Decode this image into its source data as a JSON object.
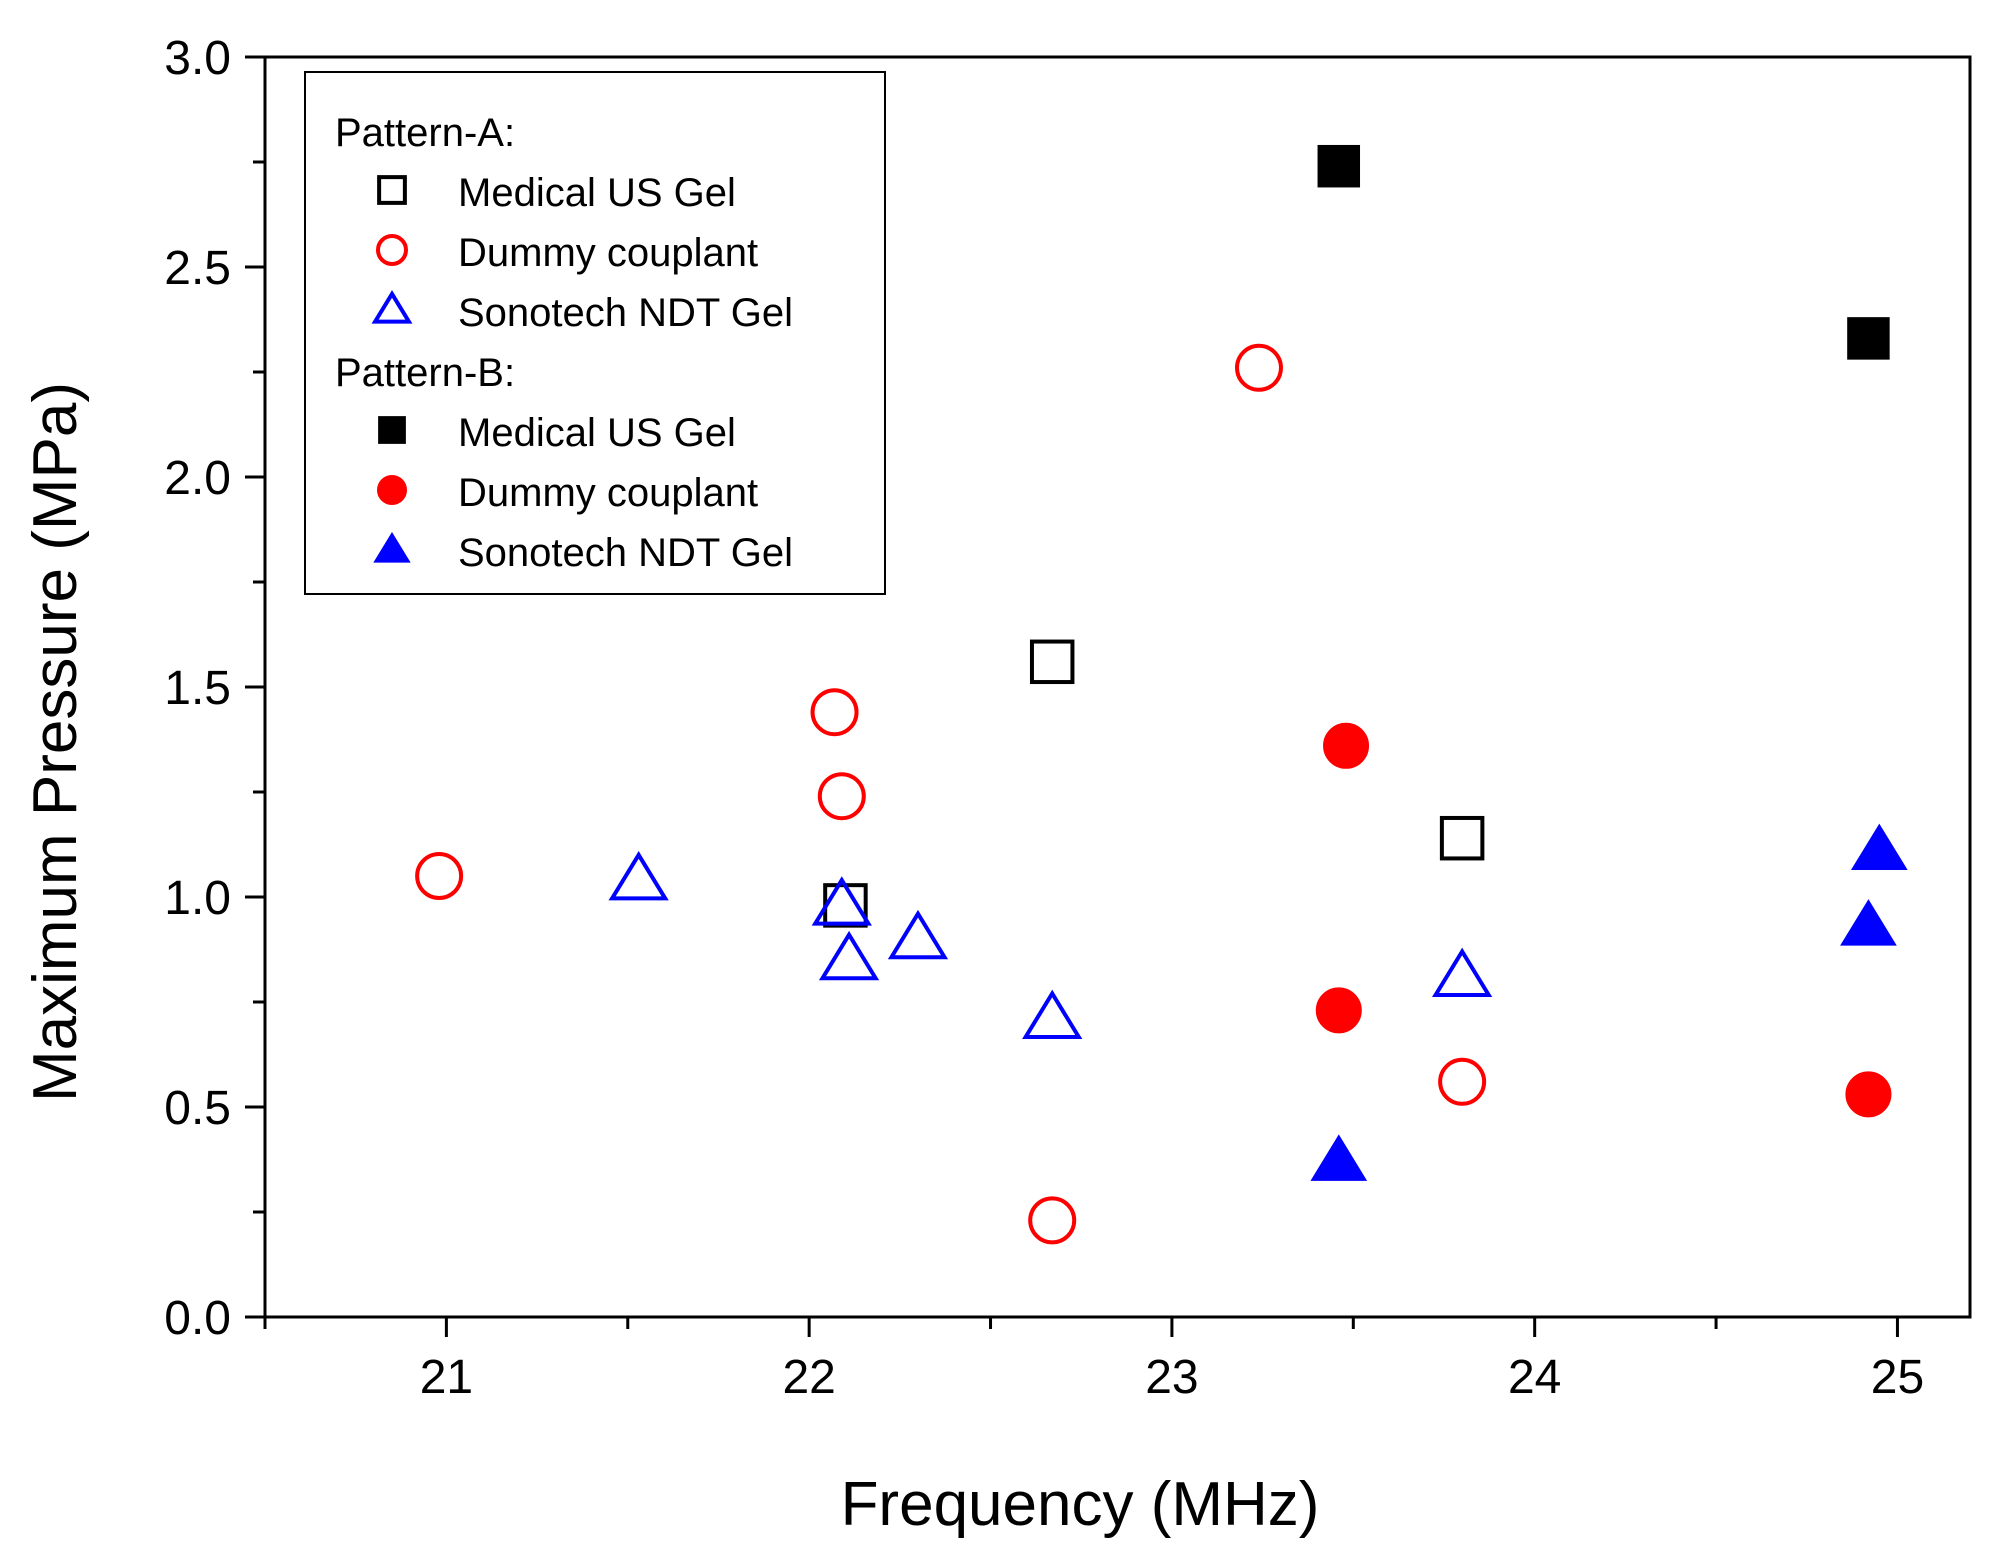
{
  "chart_data": {
    "type": "scatter",
    "title": "",
    "xlabel": "Frequency (MHz)",
    "ylabel": "Maximum Pressure (MPa)",
    "xlim": [
      20.5,
      25.2
    ],
    "ylim": [
      0.0,
      3.0
    ],
    "x_ticks": [
      21,
      22,
      23,
      24,
      25
    ],
    "x_tick_labels": [
      "21",
      "22",
      "23",
      "24",
      "25"
    ],
    "y_ticks": [
      0.0,
      0.5,
      1.0,
      1.5,
      2.0,
      2.5,
      3.0
    ],
    "y_tick_labels": [
      "0.0",
      "0.5",
      "1.0",
      "1.5",
      "2.0",
      "2.5",
      "3.0"
    ],
    "grid": false,
    "legend_position": "top-left",
    "legend_groups": [
      {
        "title": "Pattern-A:",
        "series_indices": [
          0,
          1,
          2
        ]
      },
      {
        "title": "Pattern-B:",
        "series_indices": [
          3,
          4,
          5
        ]
      }
    ],
    "series": [
      {
        "name": "Medical US Gel",
        "group": "Pattern-A",
        "marker": "square",
        "filled": false,
        "color": "#000000",
        "points": [
          [
            22.1,
            0.98
          ],
          [
            22.67,
            1.56
          ],
          [
            23.8,
            1.14
          ]
        ]
      },
      {
        "name": "Dummy couplant",
        "group": "Pattern-A",
        "marker": "circle",
        "filled": false,
        "color": "#ff0000",
        "points": [
          [
            20.98,
            1.05
          ],
          [
            22.07,
            1.44
          ],
          [
            22.09,
            1.24
          ],
          [
            22.67,
            0.23
          ],
          [
            23.24,
            2.26
          ],
          [
            23.8,
            0.56
          ]
        ]
      },
      {
        "name": "Sonotech NDT Gel",
        "group": "Pattern-A",
        "marker": "triangle",
        "filled": false,
        "color": "#0000ff",
        "points": [
          [
            21.53,
            1.04
          ],
          [
            22.09,
            0.98
          ],
          [
            22.11,
            0.85
          ],
          [
            22.3,
            0.9
          ],
          [
            22.67,
            0.71
          ],
          [
            23.8,
            0.81
          ]
        ]
      },
      {
        "name": "Medical US Gel",
        "group": "Pattern-B",
        "marker": "square",
        "filled": true,
        "color": "#000000",
        "points": [
          [
            23.46,
            2.74
          ],
          [
            24.92,
            2.33
          ]
        ]
      },
      {
        "name": "Dummy couplant",
        "group": "Pattern-B",
        "marker": "circle",
        "filled": true,
        "color": "#ff0000",
        "points": [
          [
            23.48,
            1.36
          ],
          [
            23.46,
            0.73
          ],
          [
            24.92,
            0.53
          ]
        ]
      },
      {
        "name": "Sonotech NDT Gel",
        "group": "Pattern-B",
        "marker": "triangle",
        "filled": true,
        "color": "#0000ff",
        "points": [
          [
            23.46,
            0.37
          ],
          [
            24.95,
            1.11
          ],
          [
            24.92,
            0.93
          ]
        ]
      }
    ]
  }
}
